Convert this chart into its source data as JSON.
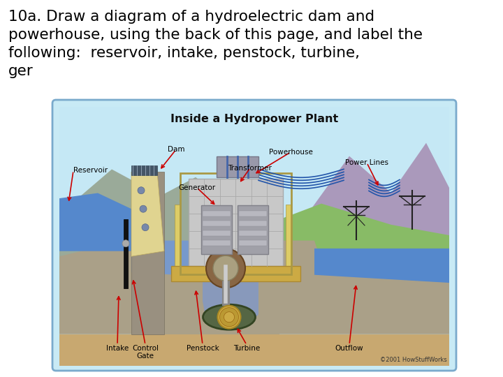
{
  "title_line1": "10a. Draw a diagram of a hydroelectric dam and",
  "title_line2": "powerhouse, using the back of this page, and label the",
  "title_line3": "following:  reservoir, intake, penstock, turbine,",
  "title_line4": "ger",
  "bg_color": "#ffffff",
  "diagram_title": "Inside a Hydropower Plant",
  "diagram_bg": "#c8eaf5",
  "diagram_border": "#7aaacc",
  "copyright": "©2001 HowStuffWorks",
  "font_color_title": "#000000",
  "font_size_main": 15.5,
  "font_size_diagram_title": 11.5
}
